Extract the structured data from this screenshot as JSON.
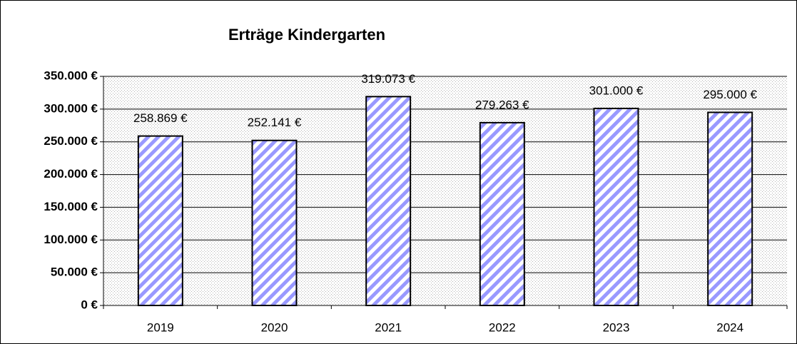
{
  "chart_data": {
    "type": "bar",
    "title": "Erträge  Kindergarten",
    "categories": [
      "2019",
      "2020",
      "2021",
      "2022",
      "2023",
      "2024"
    ],
    "values": [
      258869,
      252141,
      319073,
      279263,
      301000,
      295000
    ],
    "value_labels": [
      "258.869 €",
      "252.141 €",
      "319.073 €",
      "279.263 €",
      "301.000 €",
      "295.000 €"
    ],
    "color": "#9999ff",
    "ylim": [
      0,
      350000
    ],
    "yticks": [
      {
        "value": 0,
        "label": "0 €"
      },
      {
        "value": 50000,
        "label": "50.000 €"
      },
      {
        "value": 100000,
        "label": "100.000 €"
      },
      {
        "value": 150000,
        "label": "150.000 €"
      },
      {
        "value": 200000,
        "label": "200.000 €"
      },
      {
        "value": 250000,
        "label": "250.000 €"
      },
      {
        "value": 300000,
        "label": "300.000 €"
      },
      {
        "value": 350000,
        "label": "350.000 €"
      }
    ],
    "grid": true
  }
}
